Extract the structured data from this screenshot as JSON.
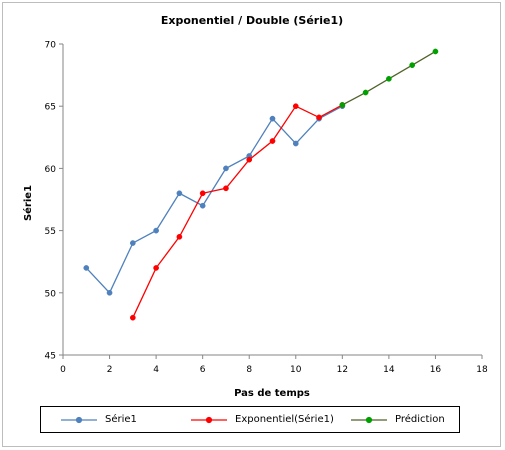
{
  "chart_data": {
    "type": "line",
    "title": "Exponentiel / Double (Série1)",
    "xlabel": "Pas de temps",
    "ylabel": "Série1",
    "xlim": [
      0,
      18
    ],
    "ylim": [
      45,
      70
    ],
    "xticks": [
      0,
      2,
      4,
      6,
      8,
      10,
      12,
      14,
      16,
      18
    ],
    "yticks": [
      45,
      50,
      55,
      60,
      65,
      70
    ],
    "grid": false,
    "legend_position": "bottom",
    "series": [
      {
        "name": "Série1",
        "color": "#4F81BD",
        "x": [
          1,
          2,
          3,
          4,
          5,
          6,
          7,
          8,
          9,
          10,
          11,
          12
        ],
        "y": [
          52,
          50,
          54,
          55,
          58,
          57,
          60,
          61,
          64,
          62,
          64,
          65
        ]
      },
      {
        "name": "Exponentiel(Série1)",
        "color": "#FF0000",
        "x": [
          3,
          4,
          5,
          6,
          7,
          8,
          9,
          10,
          11,
          12
        ],
        "y": [
          48,
          52,
          54.5,
          58,
          58.4,
          60.7,
          62.2,
          65,
          64.1,
          65.1
        ]
      },
      {
        "name": "Prédiction",
        "color": "#00A000",
        "line_color": "#4F6228",
        "x": [
          12,
          13,
          14,
          15,
          16
        ],
        "y": [
          65.1,
          66.1,
          67.2,
          68.3,
          69.4
        ]
      }
    ]
  }
}
